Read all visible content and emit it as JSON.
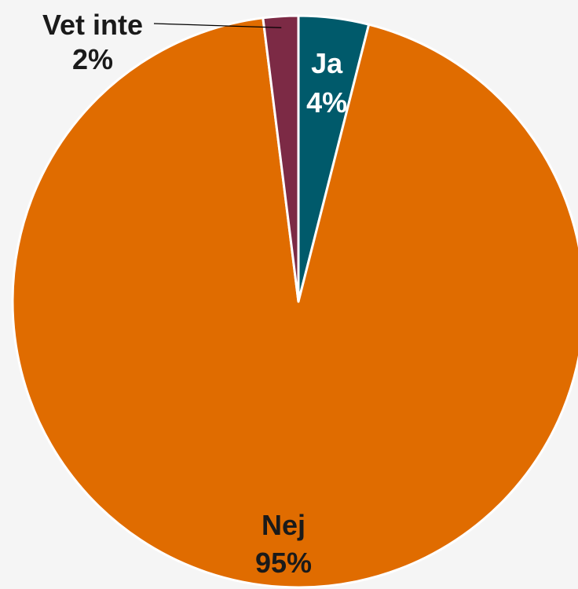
{
  "chart_data": {
    "type": "pie",
    "slices": [
      {
        "label": "Ja",
        "value": 4,
        "value_label": "4%",
        "color": "#005a6b",
        "label_color": "#ffffff"
      },
      {
        "label": "Nej",
        "value": 95,
        "value_label": "95%",
        "color": "#e06c00",
        "label_color": "#1a1a1a"
      },
      {
        "label": "Vet inte",
        "value": 2,
        "value_label": "2%",
        "color": "#7c2a45",
        "label_color": "#1a1a1a"
      }
    ],
    "start_angle_deg": 0,
    "direction": "clockwise",
    "legend": "none"
  }
}
